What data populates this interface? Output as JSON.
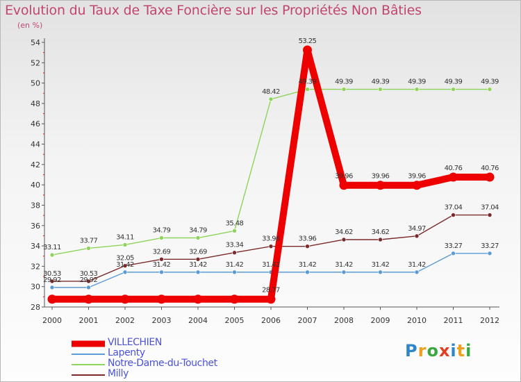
{
  "page": {
    "title": "Evolution du Taux de Taxe Foncière sur les Propriétés Non Bâties",
    "unit": "(en %)",
    "logo_text": "Proxiti",
    "logo_letters": [
      {
        "ch": "P",
        "color": "#2e86c8"
      },
      {
        "ch": "r",
        "color": "#f0a020"
      },
      {
        "ch": "o",
        "color": "#3aa840"
      },
      {
        "ch": "x",
        "color": "#e04020"
      },
      {
        "ch": "i",
        "color": "#2e86c8"
      },
      {
        "ch": "t",
        "color": "#f0a020"
      },
      {
        "ch": "i",
        "color": "#3aa840"
      }
    ]
  },
  "chart_data": {
    "type": "line",
    "title": "Evolution du Taux de Taxe Foncière sur les Propriétés Non Bâties",
    "ylabel": "(en %)",
    "xlabel": "",
    "ylim": [
      28,
      54
    ],
    "ytick_step": 2,
    "grid": false,
    "legend_position": "bottom-left",
    "categories": [
      "2000",
      "2001",
      "2002",
      "2003",
      "2004",
      "2005",
      "2006",
      "2007",
      "2008",
      "2009",
      "2010",
      "2011",
      "2012"
    ],
    "series": [
      {
        "name": "VILLECHIEN",
        "color": "#ee0000",
        "width": "thick",
        "values": [
          28.77,
          28.77,
          28.77,
          28.77,
          28.77,
          28.77,
          28.77,
          53.25,
          39.96,
          39.96,
          39.96,
          40.76,
          40.76
        ],
        "labels": [
          "",
          "",
          "",
          "",
          "",
          "",
          "28.77",
          "53.25",
          "39.96",
          "39.96",
          "39.96",
          "40.76",
          "40.76"
        ]
      },
      {
        "name": "Lapenty",
        "color": "#5b9bd5",
        "width": "thin",
        "values": [
          29.92,
          29.92,
          31.42,
          31.42,
          31.42,
          31.42,
          31.42,
          31.42,
          31.42,
          31.42,
          31.42,
          33.27,
          33.27
        ],
        "labels": [
          "29.92",
          "29.92",
          "31.42",
          "31.42",
          "31.42",
          "31.42",
          "31.42",
          "31.42",
          "31.42",
          "31.42",
          "31.42",
          "33.27",
          "33.27"
        ]
      },
      {
        "name": "Notre-Dame-du-Touchet",
        "color": "#8ed35a",
        "width": "thin",
        "values": [
          33.11,
          33.77,
          34.11,
          34.79,
          34.79,
          35.48,
          48.42,
          49.39,
          49.39,
          49.39,
          49.39,
          49.39,
          49.39
        ],
        "labels": [
          "33.11",
          "33.77",
          "34.11",
          "34.79",
          "34.79",
          "35.48",
          "48.42",
          "49.39",
          "49.39",
          "49.39",
          "49.39",
          "49.39",
          "49.39"
        ]
      },
      {
        "name": "Milly",
        "color": "#7a2a2a",
        "width": "thin",
        "values": [
          30.53,
          30.53,
          32.05,
          32.69,
          32.69,
          33.34,
          33.96,
          33.96,
          34.62,
          34.62,
          34.97,
          37.04,
          37.04
        ],
        "labels": [
          "30.53",
          "30.53",
          "32.05",
          "32.69",
          "32.69",
          "33.34",
          "33.96",
          "33.96",
          "34.62",
          "34.62",
          "34.97",
          "37.04",
          "37.04"
        ]
      }
    ]
  }
}
